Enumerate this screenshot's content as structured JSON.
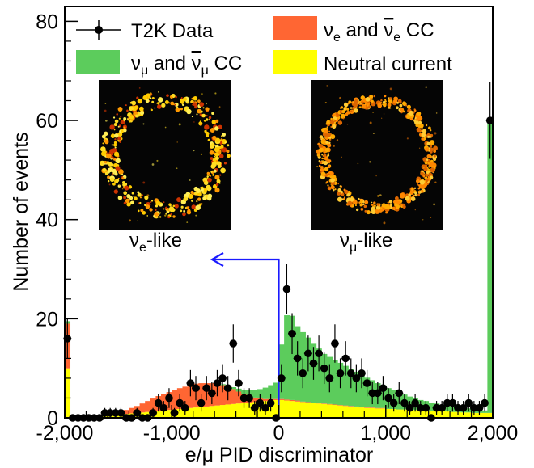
{
  "chart_data": {
    "type": "histogram",
    "xlabel": "e/μ PID discriminator",
    "ylabel": "Number of events",
    "xlim": [
      -2000,
      2000
    ],
    "ylim": [
      0,
      83
    ],
    "x_ticks": [
      -2000,
      -1000,
      0,
      1000,
      2000
    ],
    "x_tick_labels": [
      "-2,000",
      "-1,000",
      "0",
      "1,000",
      "2,000"
    ],
    "y_ticks": [
      0,
      20,
      40,
      60,
      80
    ],
    "y_tick_labels": [
      "0",
      "20",
      "40",
      "60",
      "80"
    ],
    "legend_position": "top",
    "legend": [
      {
        "key": "data",
        "label": "T2K Data",
        "style": "marker"
      },
      {
        "key": "nue",
        "label_main": "ν",
        "label_sub": "e",
        "label_mid": " and ",
        "label_bar": "ν",
        "label_sub2": "e",
        "label_end": " CC",
        "color": "#ff6633"
      },
      {
        "key": "numu",
        "label_main": "ν",
        "label_sub": "μ",
        "label_mid": " and ",
        "label_bar": "ν",
        "label_sub2": "μ",
        "label_end": " CC",
        "color": "#5ccc5c"
      },
      {
        "key": "nc",
        "label": "Neutral current",
        "color": "#ffff00"
      }
    ],
    "bin_centers": [
      -1975,
      -1925,
      -1875,
      -1825,
      -1775,
      -1725,
      -1675,
      -1625,
      -1575,
      -1525,
      -1475,
      -1425,
      -1375,
      -1325,
      -1275,
      -1225,
      -1175,
      -1125,
      -1075,
      -1025,
      -975,
      -925,
      -875,
      -825,
      -775,
      -725,
      -675,
      -625,
      -575,
      -525,
      -475,
      -425,
      -375,
      -325,
      -275,
      -225,
      -175,
      -125,
      -75,
      -25,
      25,
      75,
      125,
      175,
      225,
      275,
      325,
      375,
      425,
      475,
      525,
      575,
      625,
      675,
      725,
      775,
      825,
      875,
      925,
      975,
      1025,
      1075,
      1125,
      1175,
      1225,
      1275,
      1325,
      1375,
      1425,
      1475,
      1525,
      1575,
      1625,
      1675,
      1725,
      1775,
      1825,
      1875,
      1925,
      1975
    ],
    "series": [
      {
        "key": "nc",
        "values": [
          10,
          0.3,
          0.3,
          0.3,
          0.3,
          0.3,
          0.3,
          0.4,
          0.5,
          0.6,
          0.7,
          0.8,
          0.9,
          1.0,
          1.1,
          1.2,
          1.3,
          1.4,
          1.5,
          1.6,
          1.7,
          1.8,
          1.9,
          2.0,
          2.1,
          2.2,
          2.3,
          2.4,
          2.5,
          2.6,
          2.7,
          2.8,
          2.9,
          3.0,
          3.1,
          3.2,
          3.3,
          3.4,
          3.5,
          3.6,
          3.6,
          3.5,
          3.4,
          3.3,
          3.2,
          3.1,
          3.0,
          2.9,
          2.8,
          2.7,
          2.6,
          2.5,
          2.4,
          2.3,
          2.2,
          2.1,
          2.0,
          2.0,
          1.9,
          1.9,
          1.8,
          1.8,
          1.7,
          1.7,
          1.6,
          1.6,
          1.5,
          1.5,
          1.4,
          1.4,
          1.3,
          1.3,
          1.2,
          1.2,
          1.1,
          1.1,
          1.0,
          1.0,
          1.0,
          1.0
        ]
      },
      {
        "key": "nue",
        "values": [
          9,
          0,
          0,
          0,
          0,
          0,
          0,
          0.1,
          0.2,
          0.4,
          0.6,
          0.8,
          1.1,
          1.4,
          1.8,
          2.2,
          2.6,
          3.0,
          3.3,
          3.6,
          3.9,
          4.2,
          4.4,
          4.6,
          4.8,
          4.8,
          4.7,
          4.6,
          4.3,
          4.0,
          3.5,
          3.0,
          2.4,
          1.8,
          1.3,
          0.9,
          0.6,
          0.4,
          0.3,
          0.2,
          0.2,
          0.2,
          0.2,
          0.2,
          0.1,
          0.1,
          0.1,
          0.1,
          0.1,
          0.1,
          0.1,
          0.1,
          0.1,
          0.1,
          0.1,
          0.1,
          0.1,
          0.1,
          0.1,
          0.1,
          0,
          0,
          0,
          0,
          0,
          0,
          0,
          0,
          0,
          0,
          0,
          0,
          0,
          0,
          0,
          0,
          0,
          0,
          0,
          0
        ]
      },
      {
        "key": "numu",
        "values": [
          0.5,
          0,
          0,
          0,
          0,
          0,
          0,
          0,
          0,
          0,
          0,
          0,
          0,
          0,
          0,
          0,
          0,
          0,
          0,
          0,
          0,
          0,
          0,
          0,
          0,
          0,
          0,
          0,
          0.1,
          0.2,
          0.3,
          0.4,
          0.6,
          0.9,
          1.2,
          1.5,
          1.9,
          2.3,
          2.8,
          3.3,
          11.0,
          17.0,
          17.0,
          15.0,
          14.0,
          13.0,
          12.0,
          11.0,
          10.0,
          9.5,
          9.0,
          8.5,
          8.0,
          7.5,
          7.0,
          6.5,
          6.0,
          5.5,
          5.0,
          4.6,
          4.2,
          3.8,
          3.4,
          3.0,
          2.7,
          2.4,
          2.1,
          1.9,
          1.7,
          1.5,
          1.3,
          1.2,
          1.1,
          1.0,
          0.9,
          0.8,
          0.7,
          0.6,
          0.5,
          59
        ]
      },
      {
        "key": "data",
        "x": [
          -1975,
          -1925,
          -1875,
          -1825,
          -1775,
          -1725,
          -1675,
          -1625,
          -1575,
          -1525,
          -1475,
          -1425,
          -1375,
          -1325,
          -1275,
          -1225,
          -1175,
          -1125,
          -1075,
          -1025,
          -975,
          -925,
          -875,
          -825,
          -775,
          -725,
          -675,
          -625,
          -575,
          -525,
          -475,
          -425,
          -375,
          -325,
          -275,
          -225,
          -175,
          -125,
          -75,
          -25,
          25,
          75,
          125,
          175,
          225,
          275,
          325,
          375,
          425,
          475,
          525,
          575,
          625,
          675,
          725,
          775,
          825,
          875,
          925,
          975,
          1025,
          1075,
          1125,
          1175,
          1225,
          1275,
          1325,
          1375,
          1425,
          1475,
          1525,
          1575,
          1625,
          1675,
          1725,
          1775,
          1825,
          1875,
          1925,
          1975
        ],
        "values": [
          16,
          0,
          0,
          0,
          0,
          0,
          0,
          1,
          1,
          1,
          1,
          0,
          0,
          1,
          0,
          0,
          1,
          3,
          2,
          4,
          1,
          3,
          2,
          7,
          6,
          3,
          6,
          5,
          7,
          8,
          6,
          15,
          7,
          4,
          4,
          2,
          3,
          2,
          3,
          0,
          8,
          26,
          17,
          12,
          9,
          13,
          11,
          13,
          10,
          8,
          15,
          9,
          12,
          9,
          8,
          9,
          7,
          5,
          5,
          6,
          4,
          3,
          5,
          3,
          2,
          3,
          2,
          2,
          0,
          2,
          2,
          3,
          3,
          2,
          2,
          3,
          2,
          2,
          3,
          60
        ]
      }
    ],
    "annotation_cut_x": 0,
    "insets": [
      {
        "label_main": "ν",
        "label_sub": "e",
        "label_end": "-like"
      },
      {
        "label_main": "ν",
        "label_sub": "μ",
        "label_end": "-like"
      }
    ]
  }
}
